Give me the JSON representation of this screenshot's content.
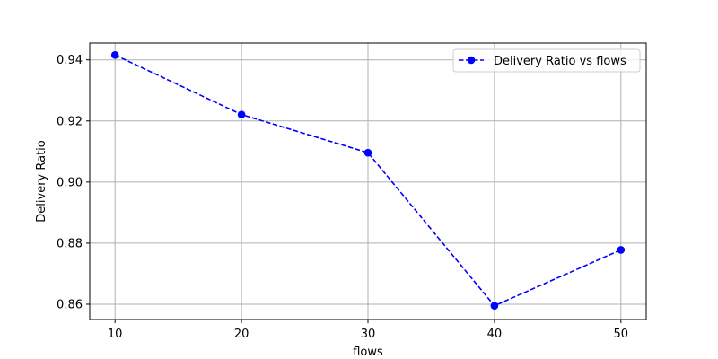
{
  "chart_data": {
    "type": "line",
    "title": "",
    "xlabel": "flows",
    "ylabel": "Delivery Ratio",
    "x": [
      10,
      20,
      30,
      40,
      50
    ],
    "x_ticks": [
      10,
      20,
      30,
      40,
      50
    ],
    "y_ticks": [
      0.86,
      0.88,
      0.9,
      0.92,
      0.94
    ],
    "y_tick_labels": [
      "0.86",
      "0.88",
      "0.90",
      "0.92",
      "0.94"
    ],
    "xlim": [
      8,
      52
    ],
    "ylim": [
      0.855,
      0.9455
    ],
    "grid": true,
    "legend_position": "top-right",
    "series": [
      {
        "name": "Delivery Ratio vs flows",
        "values": [
          0.9416,
          0.9221,
          0.9096,
          0.8595,
          0.8778
        ],
        "color": "#0000ff",
        "line_style": "dashed",
        "marker": "circle"
      }
    ]
  }
}
